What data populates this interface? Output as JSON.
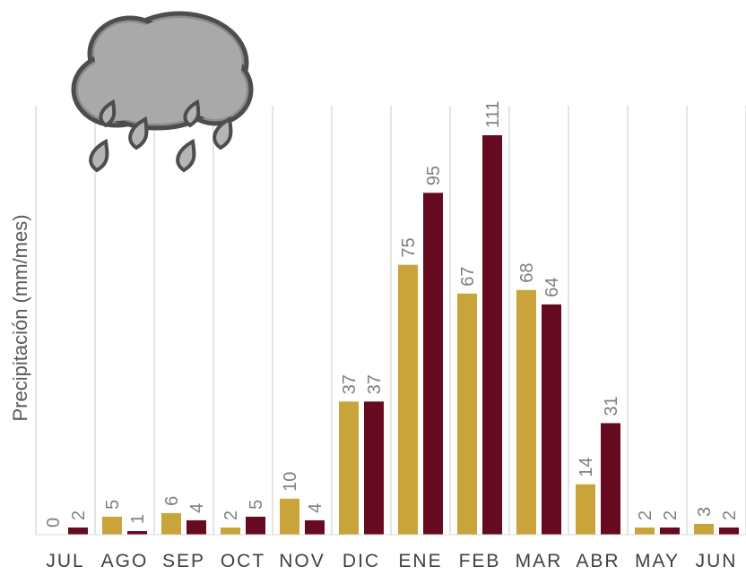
{
  "chart_data": {
    "type": "bar",
    "ylabel": "Precipitación (mm/mes)",
    "xlabel": "",
    "categories": [
      "JUL",
      "AGO",
      "SEP",
      "OCT",
      "NOV",
      "DIC",
      "ENE",
      "FEB",
      "MAR",
      "ABR",
      "MAY",
      "JUN"
    ],
    "series": [
      {
        "values": [
          0,
          5,
          6,
          2,
          10,
          37,
          75,
          67,
          68,
          14,
          2,
          3
        ],
        "color": "#c9a43a"
      },
      {
        "values": [
          2,
          1,
          4,
          5,
          4,
          37,
          95,
          111,
          64,
          31,
          2,
          2
        ],
        "color": "#660a22"
      }
    ],
    "ylim": [
      0,
      120
    ],
    "grid": "vertical category separators",
    "data_labels": "rotated, above bars",
    "decoration": "rain-cloud-icon"
  }
}
